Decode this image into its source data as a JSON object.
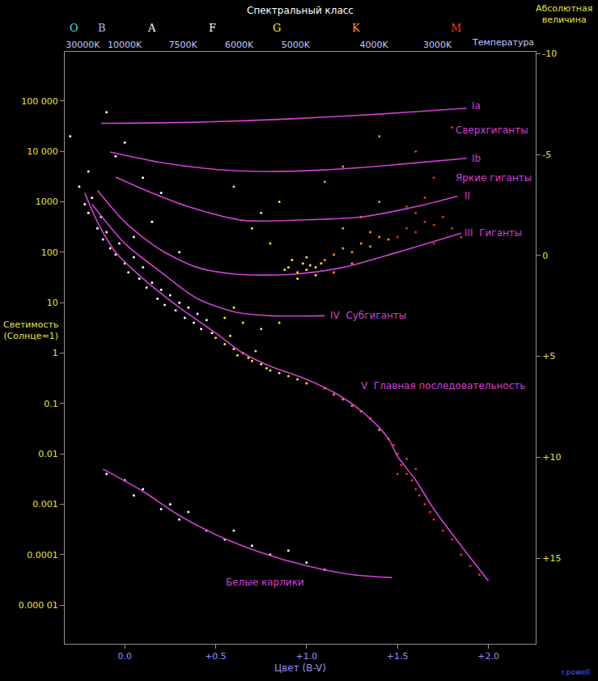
{
  "chart_data": {
    "type": "scatter",
    "log": "y",
    "grid": false,
    "title": "Спектральный класс",
    "xlabel": "Цвет (B-V)",
    "ylabel": "Светимость\n(Солнце=1)",
    "y2label": "Абсолютная\nвеличина",
    "x2label": "Температура",
    "credit": "r.powell",
    "xlim": [
      -0.33,
      2.26
    ],
    "ylim": [
      1.7e-06,
      950000
    ],
    "y2lim": [
      19.25,
      -10.1
    ],
    "xticks": [
      {
        "value": 0,
        "label": "0.0"
      },
      {
        "value": 0.5,
        "label": "+0.5"
      },
      {
        "value": 1,
        "label": "+1.0"
      },
      {
        "value": 1.5,
        "label": "+1.5"
      },
      {
        "value": 2,
        "label": "+2.0"
      }
    ],
    "yticks": [
      {
        "value": 100000,
        "label": "100 000"
      },
      {
        "value": 10000,
        "label": "10 000"
      },
      1000,
      100,
      10,
      1,
      0.1,
      0.01,
      0.001,
      0.0001,
      {
        "value": 1e-05,
        "label": "0.000 01"
      }
    ],
    "y2ticks": [
      -10,
      -5,
      0,
      {
        "value": 5,
        "label": "+5"
      },
      {
        "value": 10,
        "label": "+10"
      },
      {
        "value": 15,
        "label": "+15"
      }
    ],
    "x2ticks": [
      {
        "value": -0.23,
        "label": "30000K"
      },
      {
        "value": 0.0,
        "label": "10000K"
      },
      {
        "value": 0.32,
        "label": "7500K"
      },
      {
        "value": 0.63,
        "label": "6000K"
      },
      {
        "value": 0.94,
        "label": "5000K"
      },
      {
        "value": 1.37,
        "label": "4000K"
      },
      {
        "value": 1.72,
        "label": "3000K"
      }
    ],
    "spectral_classes": {
      "labels": [
        "O",
        "B",
        "A",
        "F",
        "G",
        "K",
        "M"
      ],
      "x": [
        -0.28,
        -0.125,
        0.15,
        0.48,
        0.835,
        1.27,
        1.82
      ],
      "colors": [
        "#40e0e0",
        "#a0c0ff",
        "#ffffff",
        "#ffffe0",
        "#ffe040",
        "#ff9030",
        "#ff3020"
      ]
    },
    "series": [
      {
        "type": "scatter",
        "color": "#ffffff",
        "x": [
          -0.25,
          -0.22,
          -0.2,
          -0.18,
          -0.15,
          -0.13,
          -0.12,
          -0.1,
          -0.08,
          -0.05,
          -0.03,
          0.0,
          0.02,
          0.05,
          0.08,
          0.1,
          0.12,
          0.15,
          0.18,
          0.2,
          0.22,
          0.25,
          0.28,
          0.3,
          0.33,
          0.35,
          0.38,
          0.4,
          0.42,
          0.45,
          0.48
        ],
        "values": [
          2000,
          900,
          600,
          1200,
          300,
          500,
          180,
          250,
          120,
          90,
          150,
          60,
          40,
          80,
          30,
          50,
          20,
          25,
          12,
          18,
          9,
          14,
          7,
          10,
          5,
          8,
          4,
          6,
          3,
          4.5,
          2.5
        ]
      },
      {
        "type": "scatter",
        "color": "#ffffff",
        "x": [
          -0.3,
          -0.1,
          0.0,
          -0.05,
          0.1,
          0.2,
          -0.2,
          0.05,
          0.3,
          0.15
        ],
        "values": [
          20000,
          60000,
          15000,
          8000,
          3000,
          1500,
          4000,
          200,
          100,
          400
        ]
      },
      {
        "type": "scatter",
        "color": "#ffffff",
        "x": [
          -0.1,
          0.0,
          0.1,
          0.05,
          0.2,
          0.3,
          0.35,
          0.45,
          0.55,
          0.6,
          0.7,
          0.8,
          0.9,
          1.0,
          1.1,
          0.25
        ],
        "values": [
          0.004,
          0.003,
          0.002,
          0.0015,
          0.0008,
          0.0005,
          0.0007,
          0.0003,
          0.0002,
          0.0003,
          0.00015,
          0.0001,
          0.00012,
          7e-05,
          5e-05,
          0.001
        ]
      },
      {
        "type": "scatter",
        "color": "#ffe040",
        "x": [
          0.5,
          0.55,
          0.58,
          0.6,
          0.62,
          0.65,
          0.68,
          0.7,
          0.72,
          0.75,
          0.78,
          0.8,
          0.85,
          0.9,
          0.95,
          1.0,
          0.55,
          0.65,
          0.75,
          0.85,
          0.6,
          0.9,
          0.95,
          0.98,
          1.0,
          1.02,
          1.05,
          0.92,
          1.0,
          1.05,
          0.95,
          1.08,
          0.88,
          0.7,
          0.8,
          0.85,
          0.6,
          0.75
        ],
        "values": [
          2,
          1.5,
          2.2,
          1.2,
          0.9,
          1.0,
          0.8,
          0.7,
          1.1,
          0.6,
          0.5,
          0.45,
          0.4,
          0.35,
          0.3,
          0.25,
          5,
          4,
          3,
          4,
          8,
          50,
          40,
          60,
          45,
          55,
          35,
          70,
          80,
          50,
          30,
          60,
          45,
          300,
          150,
          1000,
          2000,
          600
        ]
      },
      {
        "type": "scatter",
        "color": "#ff9030",
        "x": [
          1.1,
          1.15,
          1.2,
          1.25,
          1.3,
          1.35,
          1.4,
          1.45,
          1.1,
          1.15,
          1.2,
          1.25,
          1.3,
          1.35,
          1.4,
          1.45,
          1.2,
          1.3,
          1.4,
          1.25,
          1.15,
          1.35,
          1.2,
          1.4,
          1.1
        ],
        "values": [
          0.2,
          0.15,
          0.12,
          0.09,
          0.07,
          0.05,
          0.03,
          0.02,
          70,
          90,
          120,
          100,
          150,
          130,
          200,
          180,
          300,
          500,
          1000,
          60,
          40,
          250,
          5000,
          20000,
          2500
        ]
      },
      {
        "type": "scatter",
        "color": "#e03020",
        "x": [
          1.5,
          1.52,
          1.55,
          1.58,
          1.6,
          1.62,
          1.65,
          1.68,
          1.7,
          1.75,
          1.8,
          1.85,
          1.9,
          1.95,
          1.5,
          1.55,
          1.6,
          1.48,
          1.5,
          1.55,
          1.6,
          1.65,
          1.7,
          1.75,
          1.8,
          1.85,
          1.6,
          1.7,
          1.55,
          1.65,
          1.6,
          1.8,
          1.7
        ],
        "values": [
          0.01,
          0.006,
          0.004,
          0.003,
          0.002,
          0.0015,
          0.001,
          0.0007,
          0.0005,
          0.0003,
          0.0002,
          0.0001,
          6e-05,
          4e-05,
          0.004,
          0.008,
          0.005,
          0.015,
          200,
          300,
          250,
          400,
          350,
          500,
          300,
          200,
          600,
          150,
          800,
          1200,
          10000,
          30000,
          3000
        ]
      },
      {
        "type": "line",
        "color": "#d040d0",
        "x": [
          -0.13,
          0.4,
          0.9,
          1.4,
          1.88
        ],
        "values": [
          36000,
          38000,
          44000,
          55000,
          72000
        ]
      },
      {
        "type": "line",
        "color": "#d040d0",
        "x": [
          -0.08,
          0.2,
          0.5,
          0.75,
          1.1,
          1.5,
          1.88
        ],
        "values": [
          9700,
          6000,
          4400,
          4000,
          4300,
          5500,
          7300
        ]
      },
      {
        "type": "line",
        "color": "#d040d0",
        "x": [
          -0.05,
          0.15,
          0.35,
          0.65,
          1.0,
          1.3,
          1.6,
          1.83
        ],
        "values": [
          3100,
          1500,
          800,
          430,
          440,
          500,
          800,
          1300
        ]
      },
      {
        "type": "line",
        "color": "#d040d0",
        "x": [
          -0.15,
          0.0,
          0.2,
          0.4,
          0.6,
          0.9,
          1.2,
          1.5,
          1.85
        ],
        "values": [
          1700,
          400,
          110,
          50,
          37,
          36,
          50,
          100,
          240
        ]
      },
      {
        "type": "line",
        "color": "#d040d0",
        "x": [
          -0.18,
          0.0,
          0.2,
          0.4,
          0.6,
          0.8,
          1.1
        ],
        "values": [
          900,
          150,
          40,
          12,
          6.6,
          5.5,
          5.5
        ]
      },
      {
        "type": "line",
        "color": "#d040d0",
        "x": [
          -0.22,
          -0.15,
          -0.05,
          0.1,
          0.3,
          0.5,
          0.65,
          0.8,
          1.0,
          1.2,
          1.35,
          1.45,
          1.5,
          1.6,
          1.7,
          1.85,
          2.0
        ],
        "values": [
          1500,
          400,
          100,
          30,
          8,
          2.5,
          1,
          0.55,
          0.3,
          0.13,
          0.05,
          0.02,
          0.009,
          0.003,
          0.0008,
          0.00015,
          3e-05
        ]
      },
      {
        "type": "line",
        "color": "#d040d0",
        "x": [
          -0.12,
          0.1,
          0.3,
          0.5,
          0.75,
          1.0,
          1.25,
          1.47
        ],
        "values": [
          0.005,
          0.0018,
          0.0006,
          0.00025,
          0.00011,
          6e-05,
          4e-05,
          3.5e-05
        ]
      }
    ],
    "annotations": [
      {
        "text": "Ia",
        "x": 1.9,
        "y": 80000,
        "color": "#d040d0"
      },
      {
        "text": "Сверхгиганты",
        "x": 1.81,
        "y": 26000,
        "color": "#d040d0"
      },
      {
        "text": "Ib",
        "x": 1.9,
        "y": 7300,
        "color": "#d040d0"
      },
      {
        "text": "Яркие гиганты",
        "x": 1.81,
        "y": 3000,
        "color": "#d040d0"
      },
      {
        "text": "II",
        "x": 1.86,
        "y": 1300,
        "color": "#d040d0"
      },
      {
        "text": "III  Гиганты",
        "x": 1.86,
        "y": 240,
        "color": "#d040d0"
      },
      {
        "text": "IV  Субгиганты",
        "x": 1.12,
        "y": 5.5,
        "color": "#d040d0"
      },
      {
        "text": "V  Главная последовательность",
        "x": 1.29,
        "y": 0.22,
        "color": "#d040d0"
      },
      {
        "text": "Белые карлики",
        "x": 0.545,
        "y": 2.8e-05,
        "color": "#d040d0"
      }
    ]
  }
}
